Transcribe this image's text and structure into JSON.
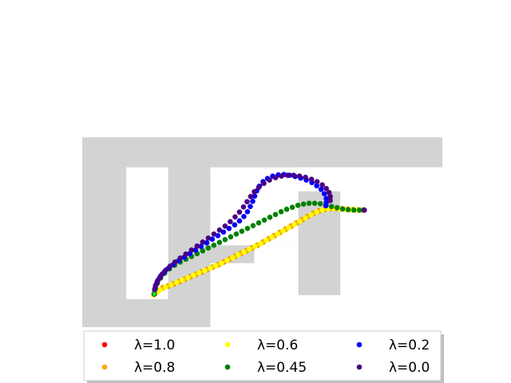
{
  "chart_data": {
    "type": "scatter",
    "title": "",
    "xlabel": "",
    "ylabel": "",
    "axes_visible": false,
    "grid": false,
    "legend": {
      "placement": "bottom-center",
      "columns": 3
    },
    "xlim": [
      0,
      9
    ],
    "ylim": [
      0,
      6.75
    ],
    "obstacle_color": "#d3d3d3",
    "obstacle_regions": [
      {
        "x": [
          0,
          9
        ],
        "y": [
          0,
          4.75
        ],
        "fill": true
      },
      {
        "x": [
          1.1,
          2.15
        ],
        "y": [
          0.7,
          4.0
        ],
        "fill": false
      },
      {
        "x": [
          3.2,
          9
        ],
        "y": [
          2.05,
          4.0
        ],
        "fill": false
      },
      {
        "x": [
          3.2,
          9
        ],
        "y": [
          0,
          1.6
        ],
        "fill": false
      },
      {
        "x": [
          4.3,
          5.4
        ],
        "y": [
          0,
          2.05
        ],
        "fill": false
      },
      {
        "x": [
          5.4,
          9
        ],
        "y": [
          0,
          4.0
        ],
        "fill": false
      }
    ],
    "obstacle_refill": [
      {
        "x": [
          2.15,
          3.2
        ],
        "y": [
          2.85,
          4.0
        ]
      },
      {
        "x": [
          2.15,
          3.2
        ],
        "y": [
          0,
          1.6
        ]
      },
      {
        "x": [
          5.4,
          6.45
        ],
        "y": [
          0.8,
          3.4
        ]
      }
    ],
    "start": [
      1.8,
      0.83
    ],
    "goal": [
      5.9,
      3.15
    ],
    "series": [
      {
        "name": "λ=1.0",
        "color": "#ff0000",
        "points": [
          [
            7.05,
            2.93
          ]
        ]
      },
      {
        "name": "λ=0.8",
        "color": "#ffa500",
        "points": [
          [
            1.8,
            0.83
          ],
          [
            1.9,
            0.92
          ],
          [
            2.02,
            0.99
          ],
          [
            2.15,
            1.03
          ],
          [
            2.28,
            1.08
          ],
          [
            2.42,
            1.14
          ],
          [
            2.56,
            1.2
          ],
          [
            2.7,
            1.26
          ],
          [
            2.84,
            1.32
          ],
          [
            2.98,
            1.38
          ],
          [
            3.12,
            1.44
          ],
          [
            3.26,
            1.5
          ],
          [
            3.4,
            1.56
          ],
          [
            3.54,
            1.63
          ],
          [
            3.68,
            1.7
          ],
          [
            3.82,
            1.77
          ],
          [
            3.96,
            1.84
          ],
          [
            4.1,
            1.91
          ],
          [
            4.24,
            1.98
          ],
          [
            4.38,
            2.05
          ],
          [
            4.52,
            2.13
          ],
          [
            4.66,
            2.21
          ],
          [
            4.8,
            2.29
          ],
          [
            4.94,
            2.37
          ],
          [
            5.08,
            2.45
          ],
          [
            5.22,
            2.53
          ],
          [
            5.36,
            2.61
          ],
          [
            5.5,
            2.69
          ],
          [
            5.64,
            2.77
          ],
          [
            5.78,
            2.85
          ],
          [
            5.92,
            2.91
          ],
          [
            6.06,
            2.95
          ],
          [
            6.2,
            2.97
          ],
          [
            6.34,
            2.97
          ],
          [
            6.48,
            2.96
          ],
          [
            6.62,
            2.95
          ],
          [
            6.76,
            2.94
          ],
          [
            6.9,
            2.93
          ],
          [
            7.02,
            2.93
          ]
        ]
      },
      {
        "name": "λ=0.6",
        "color": "#ffff00",
        "points": [
          [
            1.78,
            0.8
          ],
          [
            1.86,
            0.86
          ],
          [
            1.95,
            0.93
          ],
          [
            2.08,
            1.0
          ],
          [
            2.22,
            1.06
          ],
          [
            2.36,
            1.12
          ],
          [
            2.5,
            1.18
          ],
          [
            2.64,
            1.24
          ],
          [
            2.78,
            1.3
          ],
          [
            2.92,
            1.36
          ],
          [
            3.06,
            1.42
          ],
          [
            3.2,
            1.48
          ],
          [
            3.34,
            1.54
          ],
          [
            3.48,
            1.6
          ],
          [
            3.62,
            1.67
          ],
          [
            3.76,
            1.74
          ],
          [
            3.9,
            1.81
          ],
          [
            4.04,
            1.88
          ],
          [
            4.18,
            1.95
          ],
          [
            4.32,
            2.02
          ],
          [
            4.46,
            2.09
          ],
          [
            4.6,
            2.17
          ],
          [
            4.74,
            2.25
          ],
          [
            4.88,
            2.33
          ],
          [
            5.02,
            2.41
          ],
          [
            5.16,
            2.49
          ],
          [
            5.3,
            2.57
          ],
          [
            5.44,
            2.65
          ],
          [
            5.58,
            2.73
          ],
          [
            5.72,
            2.81
          ],
          [
            5.86,
            2.88
          ],
          [
            6.0,
            2.93
          ],
          [
            6.14,
            2.96
          ],
          [
            6.28,
            2.97
          ],
          [
            6.42,
            2.96
          ],
          [
            6.56,
            2.95
          ],
          [
            6.7,
            2.94
          ],
          [
            6.84,
            2.93
          ],
          [
            6.97,
            2.93
          ]
        ]
      },
      {
        "name": "λ=0.45",
        "color": "#008000",
        "points": [
          [
            1.8,
            0.83
          ],
          [
            1.83,
            0.97
          ],
          [
            1.88,
            1.1
          ],
          [
            1.96,
            1.23
          ],
          [
            2.06,
            1.35
          ],
          [
            2.18,
            1.46
          ],
          [
            2.31,
            1.55
          ],
          [
            2.45,
            1.63
          ],
          [
            2.59,
            1.7
          ],
          [
            2.73,
            1.77
          ],
          [
            2.87,
            1.84
          ],
          [
            3.01,
            1.91
          ],
          [
            3.15,
            1.98
          ],
          [
            3.29,
            2.05
          ],
          [
            3.43,
            2.12
          ],
          [
            3.57,
            2.19
          ],
          [
            3.71,
            2.26
          ],
          [
            3.85,
            2.33
          ],
          [
            3.99,
            2.4
          ],
          [
            4.13,
            2.47
          ],
          [
            4.27,
            2.54
          ],
          [
            4.41,
            2.61
          ],
          [
            4.55,
            2.68
          ],
          [
            4.69,
            2.75
          ],
          [
            4.83,
            2.82
          ],
          [
            4.97,
            2.89
          ],
          [
            5.11,
            2.95
          ],
          [
            5.25,
            3.0
          ],
          [
            5.39,
            3.05
          ],
          [
            5.53,
            3.08
          ],
          [
            5.67,
            3.1
          ],
          [
            5.81,
            3.1
          ],
          [
            5.95,
            3.09
          ],
          [
            6.09,
            3.06
          ],
          [
            6.23,
            3.02
          ],
          [
            6.37,
            2.99
          ],
          [
            6.51,
            2.96
          ],
          [
            6.65,
            2.94
          ],
          [
            6.79,
            2.93
          ],
          [
            6.93,
            2.93
          ],
          [
            7.04,
            2.93
          ]
        ]
      },
      {
        "name": "λ=0.2",
        "color": "#0000ff",
        "points": [
          [
            1.8,
            0.83
          ],
          [
            1.81,
            0.95
          ],
          [
            1.84,
            1.06
          ],
          [
            1.89,
            1.17
          ],
          [
            1.96,
            1.28
          ],
          [
            2.05,
            1.38
          ],
          [
            2.16,
            1.48
          ],
          [
            2.28,
            1.57
          ],
          [
            2.41,
            1.66
          ],
          [
            2.55,
            1.75
          ],
          [
            2.69,
            1.84
          ],
          [
            2.83,
            1.93
          ],
          [
            2.97,
            2.02
          ],
          [
            3.11,
            2.11
          ],
          [
            3.25,
            2.2
          ],
          [
            3.39,
            2.29
          ],
          [
            3.53,
            2.38
          ],
          [
            3.67,
            2.47
          ],
          [
            3.81,
            2.56
          ],
          [
            3.93,
            2.66
          ],
          [
            4.04,
            2.77
          ],
          [
            4.13,
            2.89
          ],
          [
            4.2,
            3.02
          ],
          [
            4.26,
            3.15
          ],
          [
            4.31,
            3.28
          ],
          [
            4.36,
            3.41
          ],
          [
            4.43,
            3.53
          ],
          [
            4.52,
            3.64
          ],
          [
            4.63,
            3.72
          ],
          [
            4.76,
            3.78
          ],
          [
            4.9,
            3.81
          ],
          [
            5.04,
            3.82
          ],
          [
            5.18,
            3.8
          ],
          [
            5.32,
            3.77
          ],
          [
            5.46,
            3.73
          ],
          [
            5.6,
            3.68
          ],
          [
            5.74,
            3.62
          ],
          [
            5.86,
            3.54
          ],
          [
            5.97,
            3.45
          ],
          [
            6.05,
            3.34
          ],
          [
            6.1,
            3.22
          ],
          [
            6.1,
            3.12
          ],
          [
            6.09,
            3.04
          ],
          [
            7.05,
            2.93
          ]
        ]
      },
      {
        "name": "λ=0.0",
        "color": "#4b0082",
        "points": [
          [
            1.8,
            0.83
          ],
          [
            1.81,
            0.93
          ],
          [
            1.83,
            1.03
          ],
          [
            1.87,
            1.13
          ],
          [
            1.93,
            1.23
          ],
          [
            2.0,
            1.33
          ],
          [
            2.09,
            1.43
          ],
          [
            2.2,
            1.53
          ],
          [
            2.32,
            1.63
          ],
          [
            2.45,
            1.73
          ],
          [
            2.59,
            1.83
          ],
          [
            2.73,
            1.93
          ],
          [
            2.87,
            2.03
          ],
          [
            3.01,
            2.13
          ],
          [
            3.15,
            2.23
          ],
          [
            3.29,
            2.33
          ],
          [
            3.43,
            2.43
          ],
          [
            3.57,
            2.53
          ],
          [
            3.7,
            2.64
          ],
          [
            3.82,
            2.76
          ],
          [
            3.93,
            2.88
          ],
          [
            4.03,
            3.01
          ],
          [
            4.12,
            3.14
          ],
          [
            4.21,
            3.27
          ],
          [
            4.3,
            3.39
          ],
          [
            4.41,
            3.5
          ],
          [
            4.54,
            3.6
          ],
          [
            4.68,
            3.68
          ],
          [
            4.83,
            3.74
          ],
          [
            4.98,
            3.78
          ],
          [
            5.13,
            3.8
          ],
          [
            5.28,
            3.8
          ],
          [
            5.43,
            3.78
          ],
          [
            5.58,
            3.75
          ],
          [
            5.73,
            3.7
          ],
          [
            5.87,
            3.64
          ],
          [
            6.0,
            3.56
          ],
          [
            6.1,
            3.47
          ],
          [
            6.17,
            3.37
          ],
          [
            6.2,
            3.27
          ],
          [
            6.2,
            3.17
          ],
          [
            7.05,
            2.93
          ]
        ]
      }
    ]
  }
}
